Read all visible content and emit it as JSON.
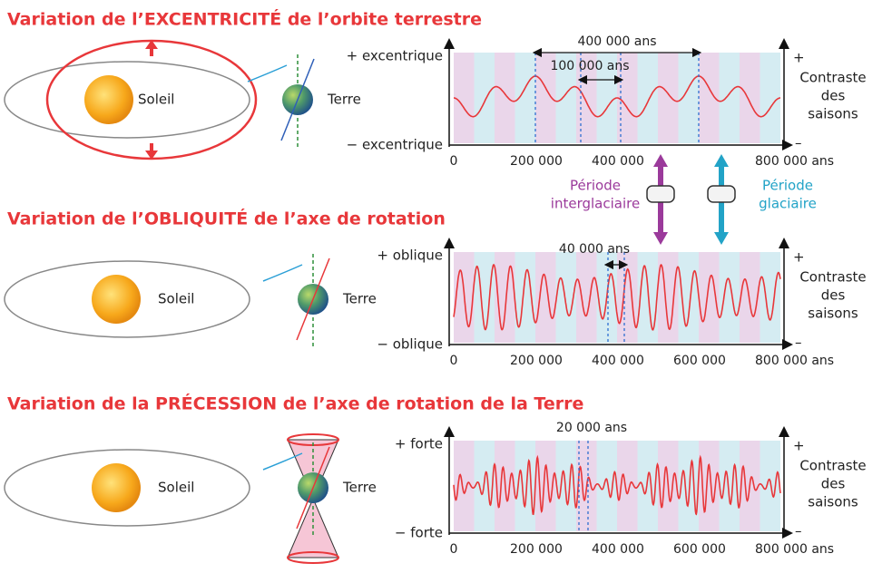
{
  "sections": [
    {
      "title": "Variation de l’EXCENTRICITÉ  de l’orbite terrestre",
      "sun": "Soleil",
      "earth": "Terre",
      "plus": "+ excentrique",
      "minus": "− excentrique",
      "ticks": [
        "0",
        "200 000",
        "400 000",
        "800 000 ans"
      ],
      "annotations": [
        "400 000 ans",
        "100 000 ans"
      ],
      "right_plus": "+",
      "right_label": [
        "Contraste",
        "des",
        "saisons"
      ],
      "right_minus": "–"
    },
    {
      "title": "Variation de l’OBLIQUITÉ  de l’axe de rotation",
      "sun": "Soleil",
      "earth": "Terre",
      "plus": "+ oblique",
      "minus": "− oblique",
      "ticks": [
        "0",
        "200 000",
        "400 000",
        "600 000",
        "800 000 ans"
      ],
      "annotations": [
        "40 000 ans"
      ],
      "right_plus": "+",
      "right_label": [
        "Contraste",
        "des",
        "saisons"
      ],
      "right_minus": "–"
    },
    {
      "title": "Variation de la PRÉCESSION de l’axe de rotation de la Terre",
      "sun": "Soleil",
      "earth": "Terre",
      "plus": "+ forte",
      "minus": "− forte",
      "ticks": [
        "0",
        "200 000",
        "400 000",
        "600 000",
        "800 000 ans"
      ],
      "annotations": [
        "20 000 ans"
      ],
      "right_plus": "+",
      "right_label": [
        "Contraste",
        "des",
        "saisons"
      ],
      "right_minus": "–"
    }
  ],
  "legend": {
    "interglacial": [
      "Période",
      "interglaciaire"
    ],
    "glacial": [
      "Période",
      "glaciaire"
    ]
  }
}
